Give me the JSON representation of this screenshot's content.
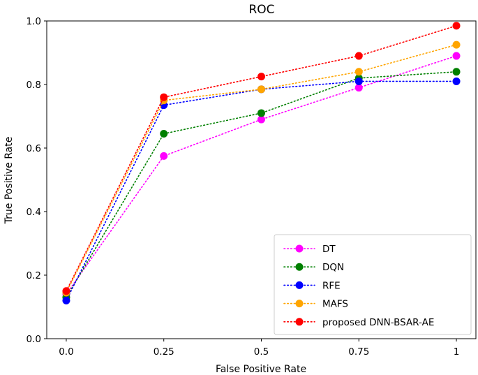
{
  "chart_data": {
    "type": "line",
    "title": "ROC",
    "xlabel": "False Positive Rate",
    "ylabel": "True Positive Rate",
    "x": [
      0.0,
      0.25,
      0.5,
      0.75,
      1.0
    ],
    "xticks": [
      0.0,
      0.25,
      0.5,
      0.75,
      1.0
    ],
    "xtick_labels": [
      "0.0",
      "0.25",
      "0.5",
      "0.75",
      "1"
    ],
    "yticks": [
      0.0,
      0.2,
      0.4,
      0.6,
      0.8,
      1.0
    ],
    "ytick_labels": [
      "0.0",
      "0.2",
      "0.4",
      "0.6",
      "0.8",
      "1.0"
    ],
    "xlim": [
      -0.05,
      1.05
    ],
    "ylim": [
      0.0,
      1.0
    ],
    "grid": false,
    "legend_position": "lower-right",
    "series": [
      {
        "name": "DT",
        "color": "#ff00ff",
        "values": [
          0.14,
          0.575,
          0.69,
          0.79,
          0.89
        ]
      },
      {
        "name": "DQN",
        "color": "#008000",
        "values": [
          0.13,
          0.645,
          0.71,
          0.82,
          0.84
        ]
      },
      {
        "name": "RFE",
        "color": "#0000ff",
        "values": [
          0.12,
          0.735,
          0.785,
          0.81,
          0.81
        ]
      },
      {
        "name": "MAFS",
        "color": "#ffa500",
        "values": [
          0.145,
          0.75,
          0.785,
          0.84,
          0.925
        ]
      },
      {
        "name": "proposed DNN-BSAR-AE",
        "color": "#ff0000",
        "values": [
          0.15,
          0.76,
          0.825,
          0.89,
          0.985
        ]
      }
    ]
  }
}
